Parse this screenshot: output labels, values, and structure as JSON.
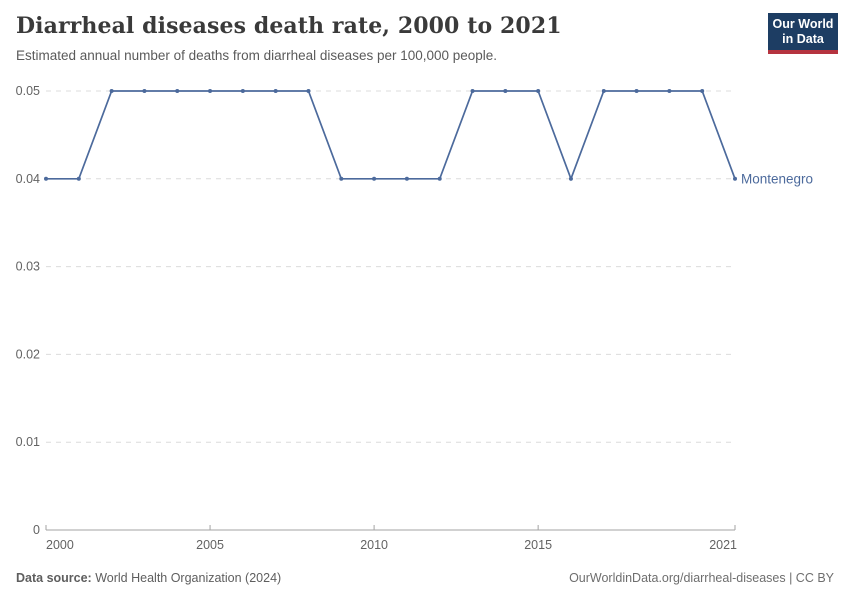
{
  "header": {
    "title": "Diarrheal diseases death rate, 2000 to 2021",
    "subtitle": "Estimated annual number of deaths from diarrheal diseases per 100,000 people.",
    "logo": {
      "line1": "Our World",
      "line2": "in Data"
    }
  },
  "chart_data": {
    "type": "line",
    "title": "Diarrheal diseases death rate, 2000 to 2021",
    "x": [
      2000,
      2001,
      2002,
      2003,
      2004,
      2005,
      2006,
      2007,
      2008,
      2009,
      2010,
      2011,
      2012,
      2013,
      2014,
      2015,
      2016,
      2017,
      2018,
      2019,
      2020,
      2021
    ],
    "series": [
      {
        "name": "Montenegro",
        "color": "#4c6a9c",
        "values": [
          0.04,
          0.04,
          0.05,
          0.05,
          0.05,
          0.05,
          0.05,
          0.05,
          0.05,
          0.04,
          0.04,
          0.04,
          0.04,
          0.05,
          0.05,
          0.05,
          0.04,
          0.05,
          0.05,
          0.05,
          0.05,
          0.04
        ]
      }
    ],
    "xlim": [
      2000,
      2021
    ],
    "ylim": [
      0,
      0.05
    ],
    "yticks": [
      {
        "value": 0,
        "label": "0"
      },
      {
        "value": 0.01,
        "label": "0.01"
      },
      {
        "value": 0.02,
        "label": "0.02"
      },
      {
        "value": 0.03,
        "label": "0.03"
      },
      {
        "value": 0.04,
        "label": "0.04"
      },
      {
        "value": 0.05,
        "label": "0.05"
      }
    ],
    "xticks": [
      {
        "value": 2000,
        "label": "2000"
      },
      {
        "value": 2005,
        "label": "2005"
      },
      {
        "value": 2010,
        "label": "2010"
      },
      {
        "value": 2015,
        "label": "2015"
      },
      {
        "value": 2021,
        "label": "2021"
      }
    ],
    "grid": "horizontal-dashed",
    "legend_position": "line-end",
    "point_markers": true
  },
  "footer": {
    "source_label": "Data source:",
    "source_name": "World Health Organization (2024)",
    "license_text": "OurWorldinData.org/diarrheal-diseases | CC BY"
  },
  "colors": {
    "line": "#4c6a9c",
    "grid": "#dcdcdc",
    "axis": "#a3a3a3",
    "tick_label": "#636363",
    "logo_bg": "#1d3d63",
    "logo_accent": "#b5333f"
  }
}
